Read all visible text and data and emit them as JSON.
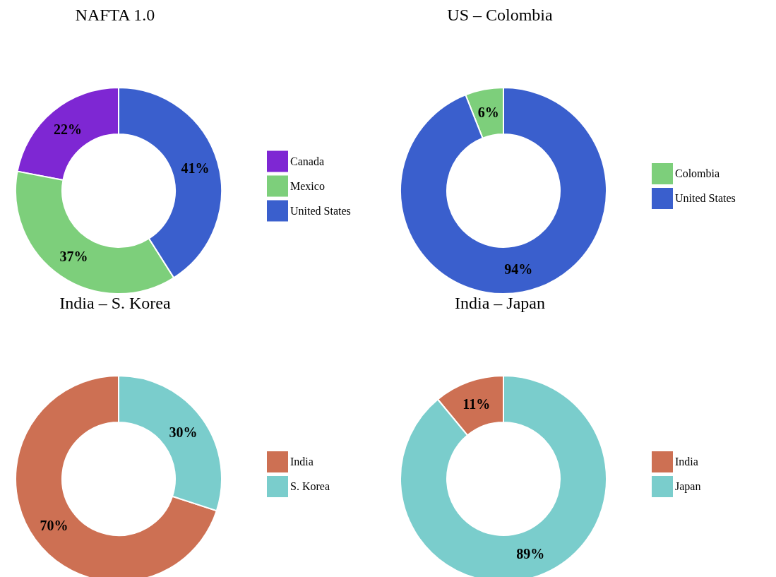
{
  "chart_data": [
    {
      "type": "donut",
      "title": "NAFTA 1.0",
      "categories": [
        "Canada",
        "Mexico",
        "United States"
      ],
      "values": [
        22,
        37,
        41
      ],
      "colors": [
        "#7e27d3",
        "#7dcf7b",
        "#3a5fcd"
      ],
      "value_labels": [
        "22%",
        "37%",
        "41%"
      ],
      "legend": "right"
    },
    {
      "type": "donut",
      "title": "US – Colombia",
      "categories": [
        "Colombia",
        "United States"
      ],
      "values": [
        6,
        94
      ],
      "colors": [
        "#7dcf7b",
        "#3a5fcd"
      ],
      "value_labels": [
        "6%",
        "94%"
      ],
      "legend": "right"
    },
    {
      "type": "donut",
      "title": "India – S. Korea",
      "categories": [
        "India",
        "S. Korea"
      ],
      "values": [
        70,
        30
      ],
      "colors": [
        "#cd7053",
        "#7acdcc"
      ],
      "value_labels": [
        "70%",
        "30%"
      ],
      "legend": "right"
    },
    {
      "type": "donut",
      "title": "India – Japan",
      "categories": [
        "India",
        "Japan"
      ],
      "values": [
        11,
        89
      ],
      "colors": [
        "#cd7053",
        "#7acdcc"
      ],
      "value_labels": [
        "11%",
        "89%"
      ],
      "legend": "right"
    }
  ]
}
